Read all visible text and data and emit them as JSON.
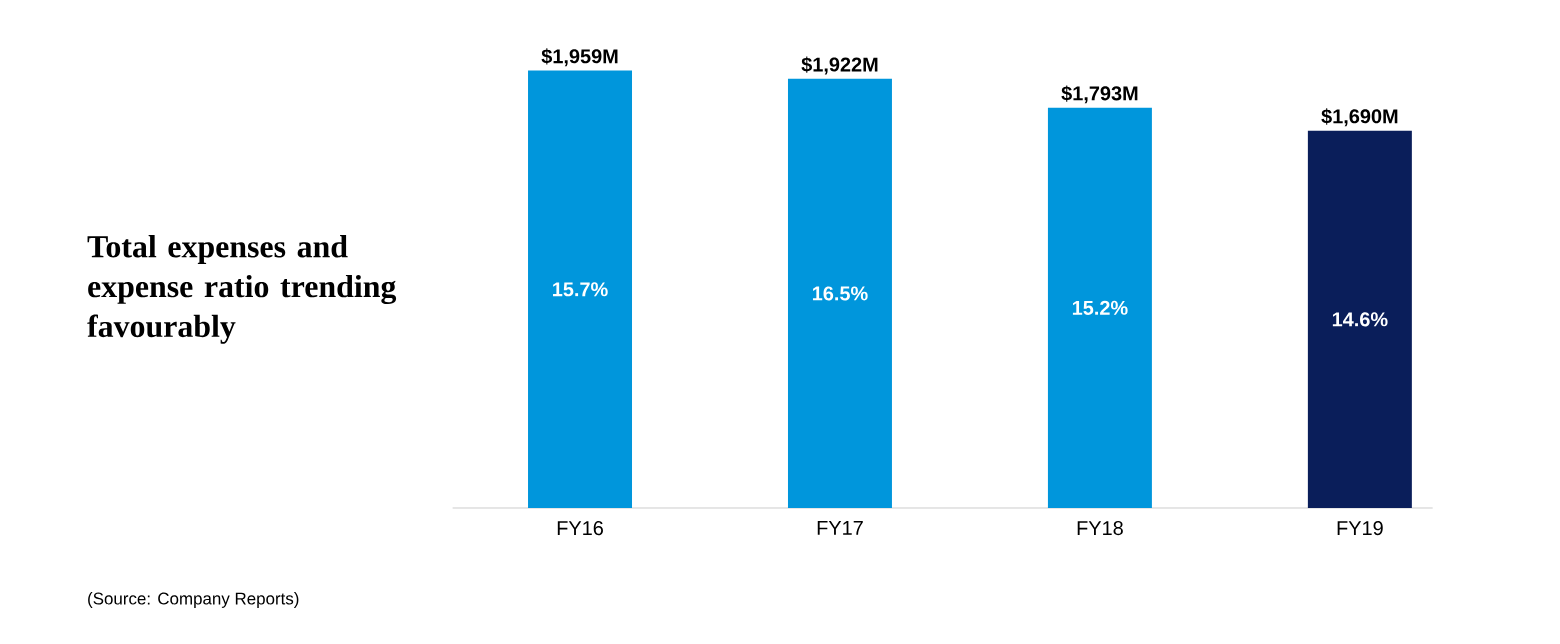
{
  "chart_data": {
    "type": "bar",
    "title": "Total expenses and expense ratio trending favourably",
    "categories": [
      "FY16",
      "FY17",
      "FY18",
      "FY19"
    ],
    "values": [
      1959,
      1922,
      1793,
      1690
    ],
    "colors": [
      "#0096DC",
      "#0096DC",
      "#0096DC",
      "#0A1E5A"
    ],
    "value_labels": [
      "$1,959M",
      "$1,922M",
      "$1,793M",
      "$1,690M"
    ],
    "annotations": [
      "15.7%",
      "16.5%",
      "15.2%",
      "14.6%",
      "(Source: Company Reports)"
    ]
  }
}
